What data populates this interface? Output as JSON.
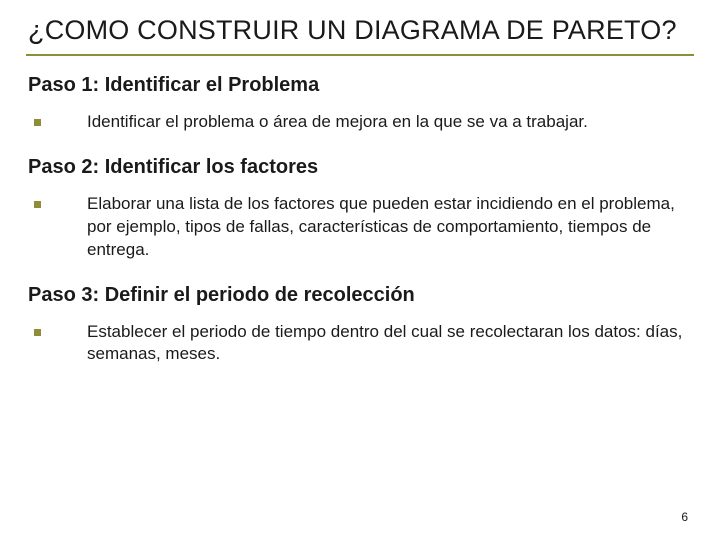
{
  "colors": {
    "accent": "#8e8e3a",
    "text": "#1a1a1a",
    "background": "#ffffff"
  },
  "typography": {
    "family": "Verdana",
    "title_fontsize": 27,
    "heading_fontsize": 20,
    "body_fontsize": 17,
    "pagenum_fontsize": 12
  },
  "title": "¿COMO CONSTRUIR UN DIAGRAMA DE PARETO?",
  "steps": [
    {
      "heading": "Paso 1: Identificar el Problema",
      "body": "Identificar el problema o área de mejora en la que se va a trabajar."
    },
    {
      "heading": "Paso 2: Identificar los factores",
      "body": "Elaborar una lista de los factores que pueden estar incidiendo en el problema, por ejemplo, tipos de fallas, características de comportamiento, tiempos de entrega."
    },
    {
      "heading": "Paso 3: Definir el periodo de recolección",
      "body": "Establecer el periodo de tiempo dentro del cual se recolectaran los datos: días, semanas, meses."
    }
  ],
  "page_number": "6"
}
